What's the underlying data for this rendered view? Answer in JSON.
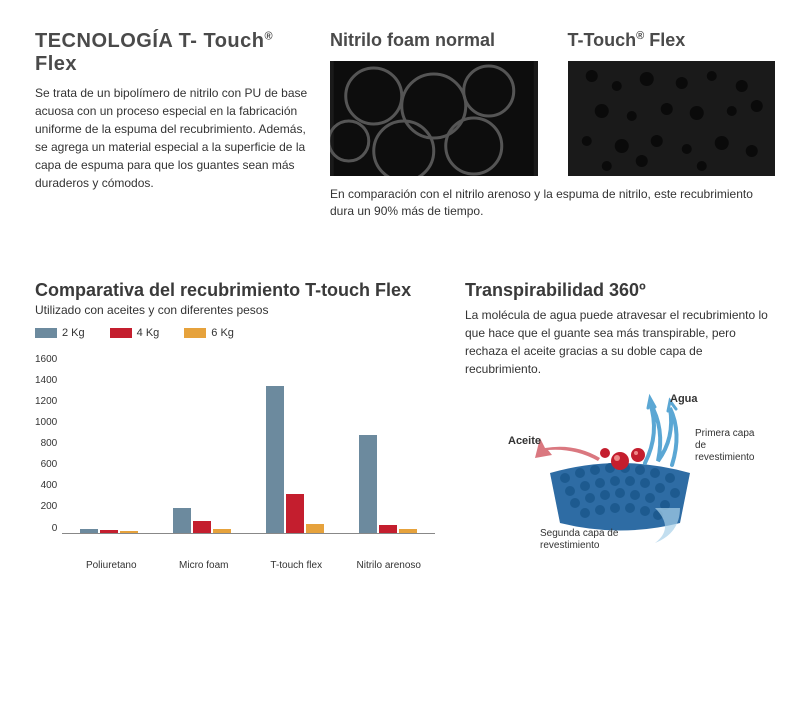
{
  "tech": {
    "title_pre": "TECNOLOGÍA T- Touch",
    "title_post": " Flex",
    "reg": "®",
    "body": "Se trata de un bipolímero de nitrilo con PU de base acuosa con un proceso especial en la fabricación uniforme de la espuma del recubrimiento. Además, se agrega un material especial a la superficie de la capa de espuma para que los guantes sean más duraderos y cómodos."
  },
  "foam": {
    "left_title": "Nitrilo foam normal",
    "right_title_pre": "T-Touch",
    "right_title_post": " Flex",
    "reg": "®",
    "compare": "En comparación con el nitrilo arenoso y la espuma de nitrilo, este recubrimiento dura un 90% más de tiempo."
  },
  "chart": {
    "title": "Comparativa del recubrimiento T-touch Flex",
    "subtitle": "Utilizado con aceites y con diferentes pesos",
    "legend": [
      {
        "label": "2 Kg",
        "color": "#6c8a9e"
      },
      {
        "label": "4 Kg",
        "color": "#c41e2e"
      },
      {
        "label": "6 Kg",
        "color": "#e6a23c"
      }
    ],
    "y_ticks": [
      "1600",
      "1400",
      "1200",
      "1000",
      "800",
      "600",
      "400",
      "200",
      "0"
    ],
    "y_max": 1600,
    "groups": [
      {
        "label": "Poliuretano",
        "values": [
          30,
          20,
          15
        ]
      },
      {
        "label": "Micro foam",
        "values": [
          220,
          100,
          35
        ]
      },
      {
        "label": "T-touch flex",
        "values": [
          1300,
          340,
          80
        ]
      },
      {
        "label": "Nitrilo arenoso",
        "values": [
          870,
          70,
          30
        ]
      }
    ]
  },
  "breath": {
    "title": "Transpirabilidad 360º",
    "desc": "La molécula de agua puede atravesar el recubrimiento lo que hace que el guante sea más transpirable, pero rechaza el aceite gracias a su doble capa de recubrimiento.",
    "labels": {
      "aceite": "Aceite",
      "agua": "Agua",
      "primera": "Primera capa de revestimiento",
      "segunda": "Segunda capa de revestimiento"
    },
    "colors": {
      "base": "#2e6ca4",
      "water": "#5ba7d4",
      "oil": "#b8323a"
    }
  }
}
